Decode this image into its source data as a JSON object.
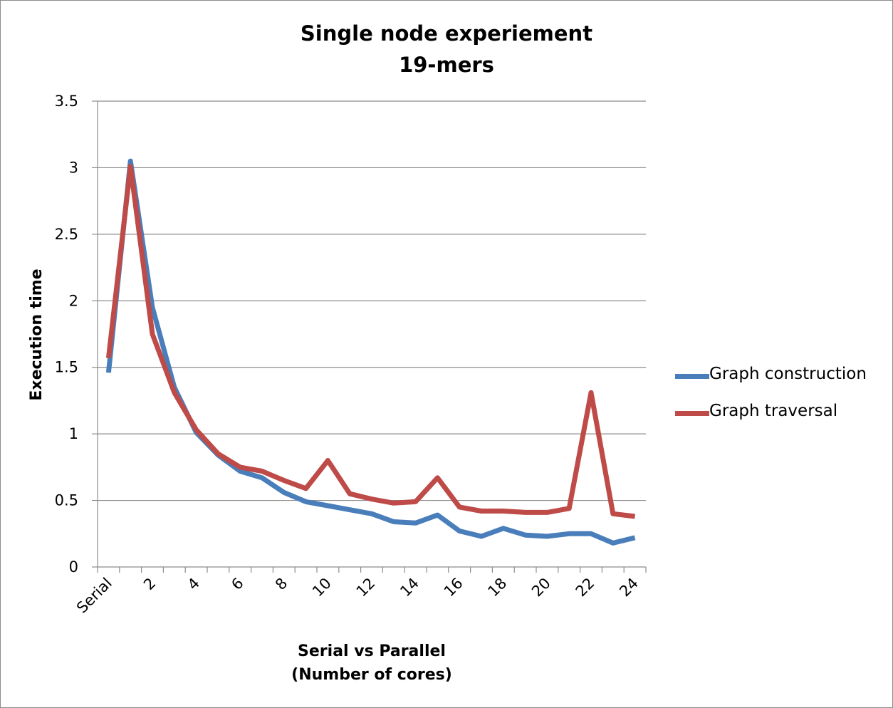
{
  "chart_data": {
    "type": "line",
    "title": "Single node experiement",
    "subtitle": "19-mers",
    "xlabel": "Serial vs Parallel",
    "xlabel2": "(Number of cores)",
    "ylabel": "Execution time",
    "ylim": [
      0,
      3.5
    ],
    "yticks": [
      "0",
      "0.5",
      "1",
      "1.5",
      "2",
      "2.5",
      "3",
      "3.5"
    ],
    "categories": [
      "Serial",
      "1",
      "2",
      "3",
      "4",
      "5",
      "6",
      "7",
      "8",
      "9",
      "10",
      "11",
      "12",
      "13",
      "14",
      "15",
      "16",
      "17",
      "18",
      "19",
      "20",
      "21",
      "22",
      "23",
      "24"
    ],
    "xtick_labels": [
      "Serial",
      "2",
      "4",
      "6",
      "8",
      "10",
      "12",
      "14",
      "16",
      "18",
      "20",
      "22",
      "24"
    ],
    "xtick_indices": [
      0,
      2,
      4,
      6,
      8,
      10,
      12,
      14,
      16,
      18,
      20,
      22,
      24
    ],
    "grid": true,
    "legend_position": "right",
    "series": [
      {
        "name": "Graph construction",
        "color": "#4a7ebb",
        "values": [
          1.46,
          3.05,
          1.95,
          1.35,
          1.01,
          0.84,
          0.72,
          0.67,
          0.56,
          0.49,
          0.46,
          0.43,
          0.4,
          0.34,
          0.33,
          0.39,
          0.27,
          0.23,
          0.29,
          0.24,
          0.23,
          0.25,
          0.25,
          0.18,
          0.22
        ]
      },
      {
        "name": "Graph traversal",
        "color": "#be4b48",
        "values": [
          1.57,
          3.01,
          1.75,
          1.31,
          1.03,
          0.85,
          0.75,
          0.72,
          0.65,
          0.59,
          0.8,
          0.55,
          0.51,
          0.48,
          0.49,
          0.67,
          0.45,
          0.42,
          0.42,
          0.41,
          0.41,
          0.44,
          1.31,
          0.4,
          0.38
        ]
      }
    ]
  }
}
